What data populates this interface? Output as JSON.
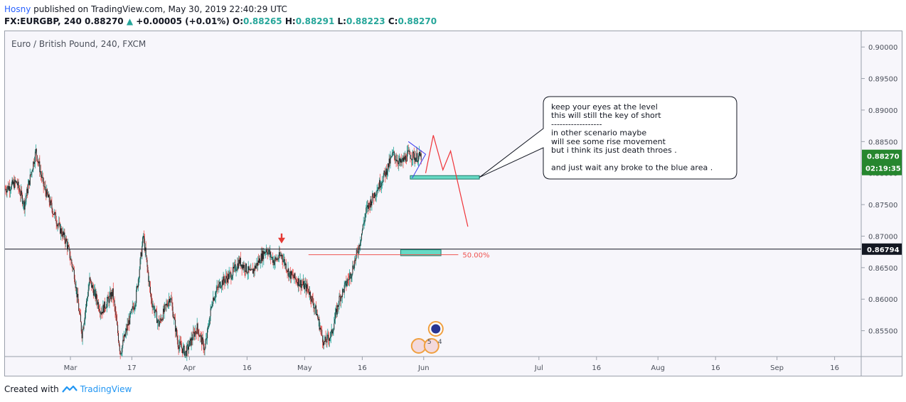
{
  "header": {
    "author": "Hosny",
    "published": " published on TradingView.com, May 30, 2019 22:40:29 UTC",
    "symbol": "FX:EURGBP, 240",
    "last": "0.88270",
    "change_arrow": "▲",
    "change": "+0.00005 (+0.01%)",
    "o_label": "O:",
    "o_value": "0.88265",
    "h_label": "H:",
    "h_value": "0.88291",
    "l_label": "L:",
    "l_value": "0.88223",
    "c_label": "C:",
    "c_value": "0.88270"
  },
  "footer": {
    "created_with": "Created with",
    "brand": "TradingView"
  },
  "chart_data": {
    "type": "candlestick",
    "title": "Euro / British Pound, 240, FXCM",
    "ylim": [
      0.8509,
      0.9025
    ],
    "y_ticks": [
      0.855,
      0.86,
      0.865,
      0.87,
      0.875,
      0.88,
      0.885,
      0.89,
      0.895,
      0.9
    ],
    "y_tick_labels": [
      "0.85500",
      "0.86000",
      "0.86500",
      "0.87000",
      "0.87500",
      "0.88000",
      "0.88500",
      "0.89000",
      "0.89500",
      "0.90000"
    ],
    "x_ticks": [
      {
        "label": "Mar",
        "day": 0
      },
      {
        "label": "17",
        "day": 16
      },
      {
        "label": "Apr",
        "day": 31
      },
      {
        "label": "16",
        "day": 46
      },
      {
        "label": "May",
        "day": 61
      },
      {
        "label": "16",
        "day": 76
      },
      {
        "label": "Jun",
        "day": 92
      },
      {
        "label": "Jul",
        "day": 122
      },
      {
        "label": "16",
        "day": 137
      },
      {
        "label": "Aug",
        "day": 153
      },
      {
        "label": "16",
        "day": 168
      },
      {
        "label": "Sep",
        "day": 184
      },
      {
        "label": "16",
        "day": 199
      }
    ],
    "x_range_days": [
      -17,
      209
    ],
    "price_path": [
      [
        -17,
        0.8775
      ],
      [
        -14,
        0.8785
      ],
      [
        -12,
        0.875
      ],
      [
        -9,
        0.8835
      ],
      [
        -7,
        0.878
      ],
      [
        -3,
        0.8715
      ],
      [
        -1,
        0.869
      ],
      [
        1,
        0.864
      ],
      [
        3,
        0.8545
      ],
      [
        5,
        0.863
      ],
      [
        8,
        0.858
      ],
      [
        11,
        0.861
      ],
      [
        13,
        0.8515
      ],
      [
        15,
        0.856
      ],
      [
        17,
        0.86
      ],
      [
        19,
        0.87
      ],
      [
        21,
        0.86
      ],
      [
        23,
        0.856
      ],
      [
        26,
        0.8605
      ],
      [
        28,
        0.853
      ],
      [
        30,
        0.8515
      ],
      [
        33,
        0.8555
      ],
      [
        35,
        0.852
      ],
      [
        37,
        0.86
      ],
      [
        39,
        0.8625
      ],
      [
        42,
        0.864
      ],
      [
        44,
        0.866
      ],
      [
        47,
        0.864
      ],
      [
        49,
        0.866
      ],
      [
        51,
        0.868
      ],
      [
        53,
        0.866
      ],
      [
        55,
        0.867
      ],
      [
        57,
        0.864
      ],
      [
        59,
        0.863
      ],
      [
        62,
        0.8615
      ],
      [
        64,
        0.858
      ],
      [
        66,
        0.853
      ],
      [
        68,
        0.8545
      ],
      [
        70,
        0.86
      ],
      [
        73,
        0.864
      ],
      [
        75,
        0.868
      ],
      [
        77,
        0.874
      ],
      [
        79,
        0.8765
      ],
      [
        82,
        0.88
      ],
      [
        84,
        0.883
      ],
      [
        86,
        0.8815
      ],
      [
        88,
        0.883
      ],
      [
        90,
        0.8825
      ],
      [
        91.5,
        0.8827
      ]
    ],
    "annotations": {
      "level_price": 0.86794,
      "level_label": "0.86794",
      "last_price_label": "0.88270",
      "countdown_label": "02:19:35",
      "fib_label": "50.00%",
      "callout_lines": [
        "keep your eyes at the level",
        "this will still the key of short",
        "------------------",
        "in other scenario maybe",
        " will see some rise movement",
        "but i think its just death throes .",
        "",
        "and just wait any broke to the blue area ."
      ],
      "event_number": "5",
      "event_extra": "4",
      "projection_path": [
        [
          92.5,
          0.88
        ],
        [
          94.5,
          0.886
        ],
        [
          97,
          0.8805
        ],
        [
          99,
          0.8835
        ],
        [
          103.5,
          0.8715
        ]
      ],
      "triangle": [
        [
          88,
          0.885
        ],
        [
          92.5,
          0.883
        ],
        [
          89,
          0.8792
        ]
      ],
      "zone_high": [
        88.5,
        106.5,
        0.8796,
        0.87905
      ],
      "zone_low": [
        86,
        96.5,
        0.86785,
        0.8669
      ],
      "fib_line": [
        62,
        101,
        0.86705
      ]
    },
    "colors": {
      "up": "#26a69a",
      "down": "#ef5350",
      "candle_body": "#2b2b2b",
      "zone": "#66d9c4",
      "projection": "#ef3338",
      "triangle": "#3a3af0",
      "last_price_bg": "#26862e",
      "level_bg": "#131722",
      "author": "#2962ff"
    }
  }
}
